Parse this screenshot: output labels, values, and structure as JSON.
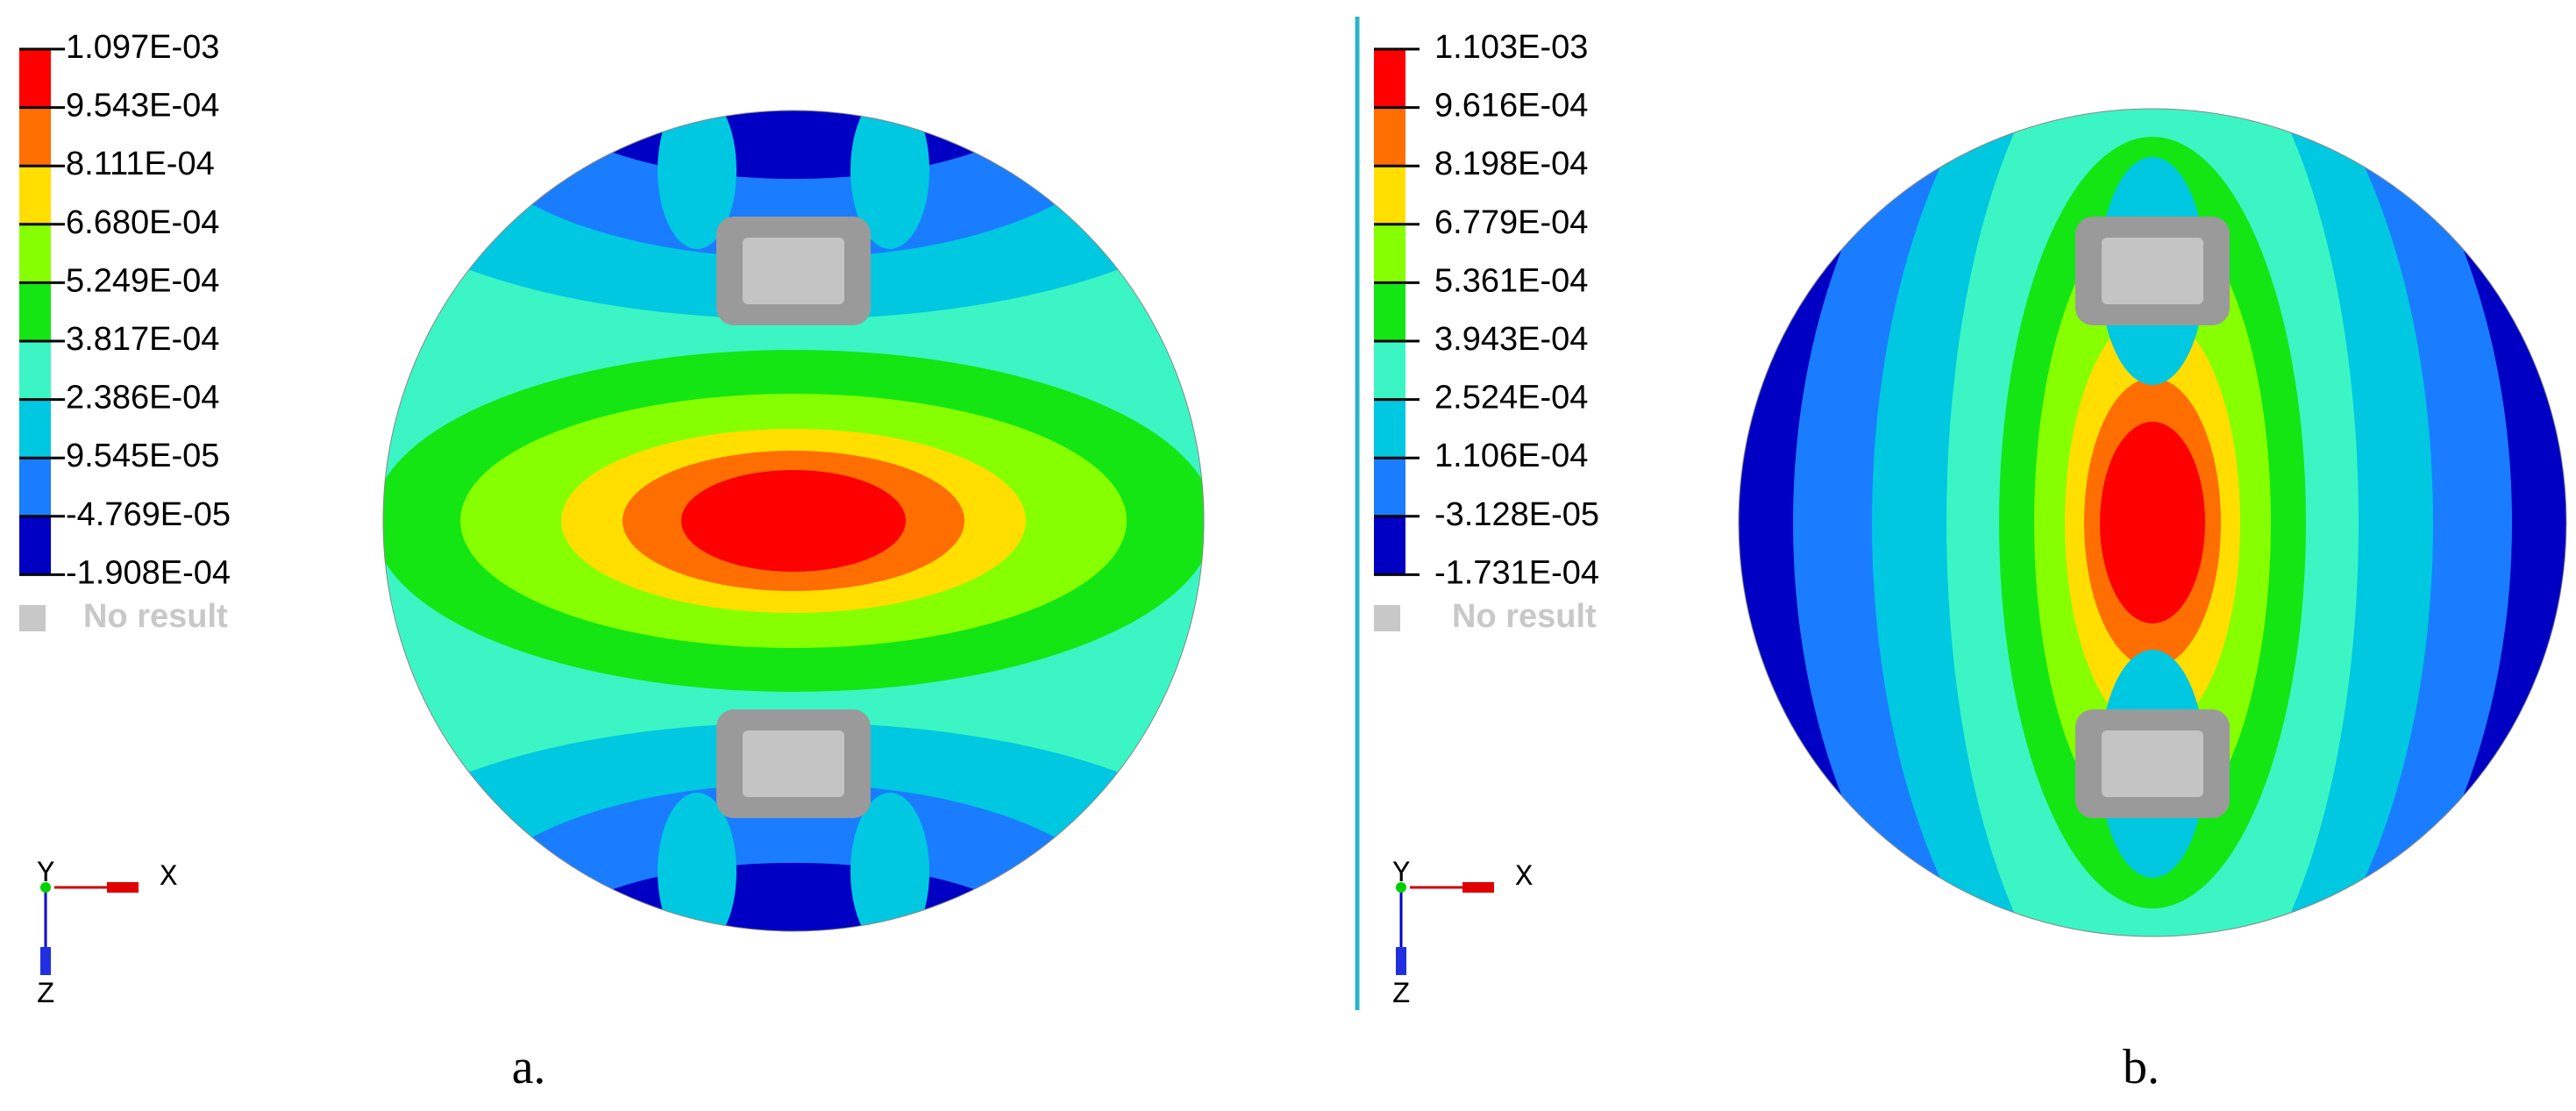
{
  "panels": [
    {
      "legend": [
        "1.097E-03",
        "9.543E-04",
        "8.111E-04",
        "6.680E-04",
        "5.249E-04",
        "3.817E-04",
        "2.386E-04",
        "9.545E-05",
        "-4.769E-05",
        "-1.908E-04"
      ],
      "no_result": "No result",
      "axes": {
        "y": "Y",
        "x": "X",
        "z": "Z"
      },
      "caption": "a."
    },
    {
      "legend": [
        "1.103E-03",
        "9.616E-04",
        "8.198E-04",
        "6.779E-04",
        "5.361E-04",
        "3.943E-04",
        "2.524E-04",
        "1.106E-04",
        "-3.128E-05",
        "-1.731E-04"
      ],
      "no_result": "No result",
      "axes": {
        "y": "Y",
        "x": "X",
        "z": "Z"
      },
      "caption": "b."
    }
  ]
}
